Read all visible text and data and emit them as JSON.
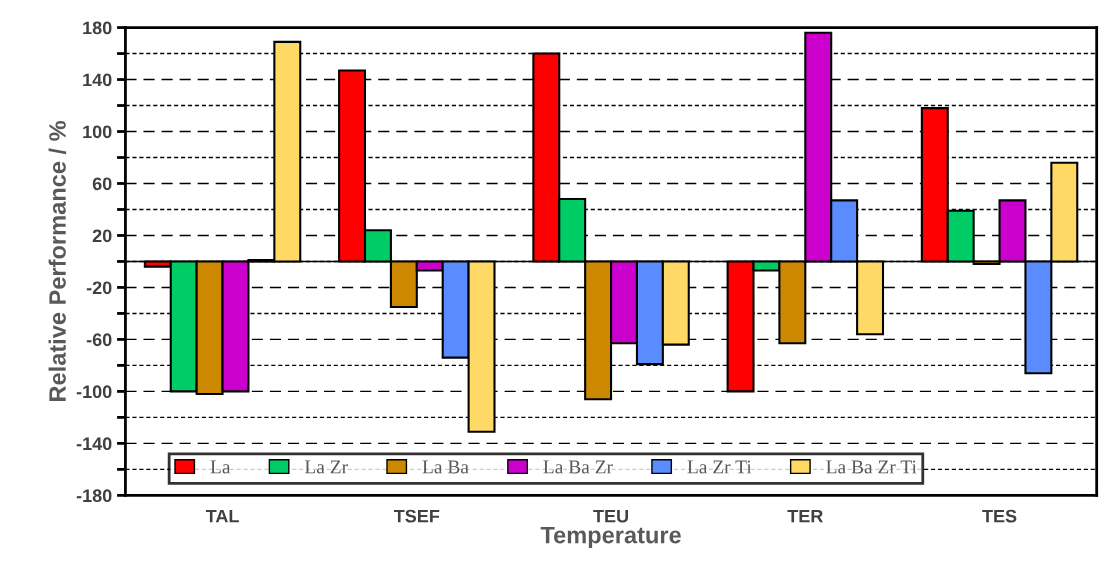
{
  "chart_data": {
    "type": "bar",
    "xlabel": "Temperature",
    "ylabel": "Relative Performance / %",
    "categories": [
      "TAL",
      "TSEF",
      "TEU",
      "TER",
      "TES"
    ],
    "series": [
      {
        "name": "La",
        "color": "#ff0000",
        "values": [
          -4,
          147,
          160,
          -100,
          118
        ]
      },
      {
        "name": "La Zr",
        "color": "#00cc66",
        "values": [
          -100,
          24,
          48,
          -7,
          39
        ]
      },
      {
        "name": "La Ba",
        "color": "#cc8800",
        "values": [
          -102,
          -35,
          -106,
          -63,
          -2
        ]
      },
      {
        "name": "La Ba Zr",
        "color": "#cc00cc",
        "values": [
          -100,
          -7,
          -63,
          176,
          47
        ]
      },
      {
        "name": "La Zr Ti",
        "color": "#5b8cff",
        "values": [
          1,
          -74,
          -79,
          47,
          -86
        ]
      },
      {
        "name": "La Ba Zr Ti",
        "color": "#ffd966",
        "values": [
          169,
          -131,
          -64,
          -56,
          76
        ]
      }
    ],
    "ylim": [
      -180,
      180
    ],
    "yticks": [
      -180,
      {
        "value": -160,
        "label": null
      },
      -140,
      {
        "value": -120,
        "label": null
      },
      -100,
      {
        "value": -80,
        "label": null
      },
      -60,
      {
        "value": -40,
        "label": null
      },
      -20,
      {
        "value": 0,
        "label": null
      },
      20,
      {
        "value": 40,
        "label": null
      },
      60,
      {
        "value": 80,
        "label": null
      },
      100,
      {
        "value": 120,
        "label": null
      },
      140,
      {
        "value": 160,
        "label": null
      },
      180
    ],
    "grid": "y",
    "legend": "bottom"
  }
}
